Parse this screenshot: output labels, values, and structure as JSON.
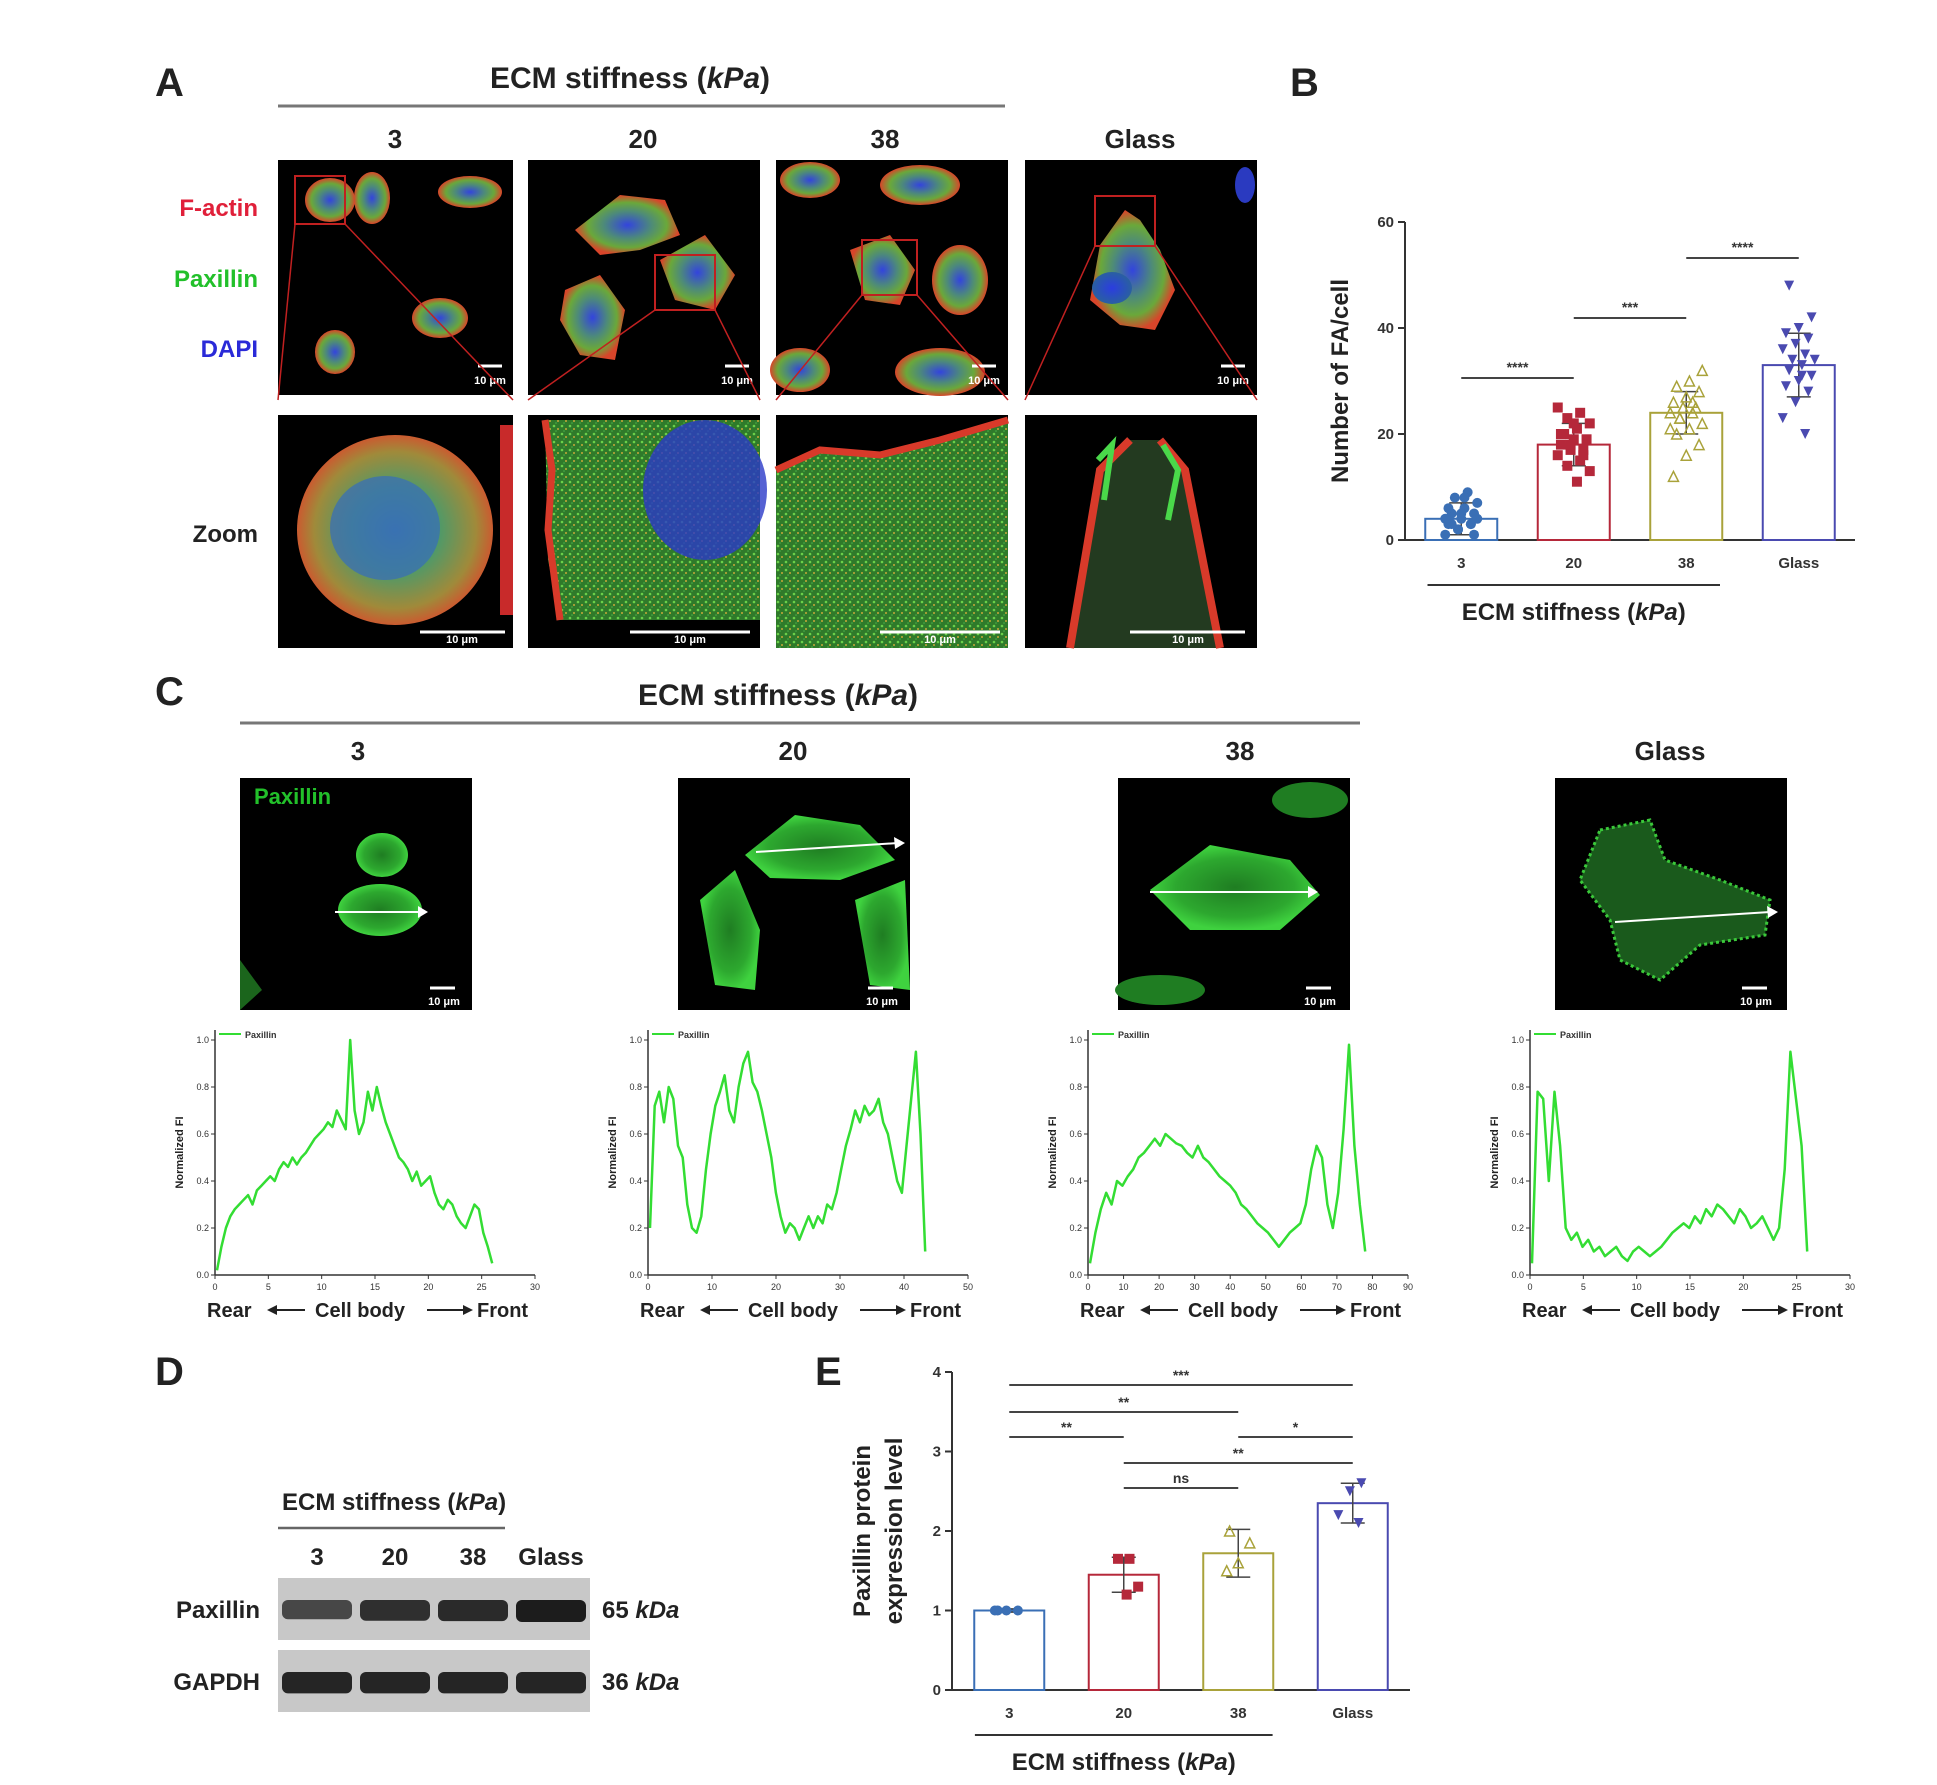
{
  "panels": {
    "A": {
      "label": "A",
      "header_prefix": "ECM stiffness (",
      "header_unit": "kPa",
      "header_suffix": ")",
      "columns": [
        "3",
        "20",
        "38",
        "Glass"
      ],
      "stains": [
        {
          "name": "F-actin",
          "color": "#e0203a"
        },
        {
          "name": "Paxillin",
          "color": "#22c02a"
        },
        {
          "name": "DAPI",
          "color": "#2a2ad8"
        }
      ],
      "zoom_label": "Zoom",
      "scale_bar": "10 μm"
    },
    "B": {
      "label": "B",
      "significance": [
        "****",
        "***",
        "****"
      ]
    },
    "C": {
      "label": "C",
      "header_prefix": "ECM stiffness (",
      "header_unit": "kPa",
      "header_suffix": ")",
      "columns": [
        "3",
        "20",
        "38",
        "Glass"
      ],
      "image_label": "Paxillin",
      "scale_bar": "10 μm",
      "direction": {
        "rear": "Rear",
        "body": "Cell body",
        "front": "Front"
      }
    },
    "D": {
      "label": "D",
      "header_prefix": "ECM stiffness (",
      "header_unit": "kPa",
      "header_suffix": ")",
      "lanes": [
        "3",
        "20",
        "38",
        "Glass"
      ],
      "bands": [
        {
          "name": "Paxillin",
          "size": "65 ",
          "unit": "kDa",
          "intensity": [
            0.55,
            0.8,
            0.85,
            1.0
          ]
        },
        {
          "name": "GAPDH",
          "size": "36 ",
          "unit": "kDa",
          "intensity": [
            0.9,
            0.9,
            0.9,
            0.9
          ]
        }
      ]
    },
    "E": {
      "label": "E",
      "significance": [
        {
          "from": 0,
          "to": 3,
          "text": "***"
        },
        {
          "from": 0,
          "to": 2,
          "text": "**"
        },
        {
          "from": 0,
          "to": 1,
          "text": "**"
        },
        {
          "from": 2,
          "to": 3,
          "text": "*"
        },
        {
          "from": 1,
          "to": 3,
          "text": "**"
        },
        {
          "from": 1,
          "to": 2,
          "text": "ns"
        }
      ]
    }
  },
  "chart_data": [
    {
      "id": "B",
      "type": "bar",
      "categories": [
        "3",
        "20",
        "38",
        "Glass"
      ],
      "values": [
        4,
        18,
        24,
        33
      ],
      "errors": [
        3,
        4,
        4,
        6
      ],
      "points": [
        [
          1,
          2,
          3,
          3,
          4,
          5,
          5,
          6,
          7,
          8,
          9,
          4,
          2,
          3,
          6,
          5,
          1,
          3,
          8,
          4
        ],
        [
          11,
          13,
          14,
          15,
          16,
          17,
          17,
          18,
          19,
          19,
          20,
          21,
          22,
          23,
          24,
          25,
          18,
          16,
          20,
          22
        ],
        [
          12,
          16,
          18,
          20,
          21,
          22,
          23,
          24,
          24,
          25,
          25,
          26,
          27,
          28,
          29,
          30,
          32,
          23,
          26,
          21
        ],
        [
          20,
          23,
          26,
          28,
          29,
          30,
          31,
          32,
          33,
          34,
          34,
          35,
          36,
          37,
          38,
          39,
          40,
          42,
          48,
          31
        ]
      ],
      "series_colors": [
        "#3a6fb5",
        "#b5283a",
        "#a9a23a",
        "#4a4ab0"
      ],
      "ylabel": "Number of FA/cell",
      "xlabel_prefix": "ECM stiffness (",
      "xlabel_unit": "kPa",
      "xlabel_suffix": ")",
      "ylim": [
        0,
        60
      ],
      "yticks": [
        "0",
        "20",
        "40",
        "60"
      ]
    },
    {
      "id": "C1",
      "type": "line",
      "series": [
        {
          "name": "Paxillin",
          "values": [
            0.02,
            0.12,
            0.2,
            0.25,
            0.28,
            0.3,
            0.32,
            0.34,
            0.3,
            0.36,
            0.38,
            0.4,
            0.42,
            0.4,
            0.45,
            0.48,
            0.46,
            0.5,
            0.47,
            0.5,
            0.52,
            0.55,
            0.58,
            0.6,
            0.62,
            0.65,
            0.63,
            0.7,
            0.66,
            0.62,
            1.0,
            0.7,
            0.6,
            0.65,
            0.78,
            0.7,
            0.8,
            0.72,
            0.65,
            0.6,
            0.55,
            0.5,
            0.48,
            0.45,
            0.4,
            0.44,
            0.38,
            0.4,
            0.42,
            0.35,
            0.3,
            0.28,
            0.32,
            0.3,
            0.25,
            0.22,
            0.2,
            0.25,
            0.3,
            0.28,
            0.18,
            0.12,
            0.05
          ]
        }
      ],
      "x_range": [
        0,
        31
      ],
      "ylim": [
        0,
        1.0
      ],
      "xticks": [
        "0",
        "5",
        "10",
        "15",
        "20",
        "25",
        "30"
      ],
      "yticks": [
        "0.0",
        "0.2",
        "0.4",
        "0.6",
        "0.8",
        "1.0"
      ],
      "ylabel": "Normalized FI"
    },
    {
      "id": "C2",
      "type": "line",
      "series": [
        {
          "name": "Paxillin",
          "values": [
            0.2,
            0.72,
            0.78,
            0.65,
            0.8,
            0.75,
            0.55,
            0.5,
            0.3,
            0.2,
            0.18,
            0.25,
            0.45,
            0.6,
            0.72,
            0.78,
            0.85,
            0.7,
            0.65,
            0.8,
            0.9,
            0.95,
            0.82,
            0.78,
            0.7,
            0.6,
            0.5,
            0.35,
            0.25,
            0.18,
            0.22,
            0.2,
            0.15,
            0.2,
            0.25,
            0.2,
            0.25,
            0.22,
            0.3,
            0.28,
            0.35,
            0.45,
            0.55,
            0.62,
            0.7,
            0.65,
            0.72,
            0.68,
            0.7,
            0.75,
            0.65,
            0.6,
            0.5,
            0.4,
            0.35,
            0.55,
            0.75,
            0.95,
            0.6,
            0.1
          ]
        }
      ],
      "x_range": [
        0,
        50
      ],
      "ylim": [
        0,
        1.0
      ],
      "xticks": [
        "0",
        "10",
        "20",
        "30",
        "40",
        "50"
      ],
      "yticks": [
        "0.0",
        "0.2",
        "0.4",
        "0.6",
        "0.8",
        "1.0"
      ],
      "ylabel": "Normalized FI"
    },
    {
      "id": "C3",
      "type": "line",
      "series": [
        {
          "name": "Paxillin",
          "values": [
            0.05,
            0.18,
            0.28,
            0.35,
            0.3,
            0.4,
            0.38,
            0.42,
            0.45,
            0.5,
            0.52,
            0.55,
            0.58,
            0.55,
            0.6,
            0.58,
            0.56,
            0.55,
            0.52,
            0.5,
            0.55,
            0.5,
            0.48,
            0.45,
            0.42,
            0.4,
            0.38,
            0.35,
            0.3,
            0.28,
            0.25,
            0.22,
            0.2,
            0.18,
            0.15,
            0.12,
            0.15,
            0.18,
            0.2,
            0.22,
            0.3,
            0.45,
            0.55,
            0.5,
            0.3,
            0.2,
            0.35,
            0.62,
            0.98,
            0.55,
            0.3,
            0.1
          ]
        }
      ],
      "x_range": [
        0,
        90
      ],
      "ylim": [
        0,
        1.0
      ],
      "xticks": [
        "0",
        "10",
        "20",
        "30",
        "40",
        "50",
        "60",
        "70",
        "80",
        "90"
      ],
      "yticks": [
        "0.0",
        "0.2",
        "0.4",
        "0.6",
        "0.8",
        "1.0"
      ],
      "ylabel": "Normalized FI"
    },
    {
      "id": "C4",
      "type": "line",
      "series": [
        {
          "name": "Paxillin",
          "values": [
            0.05,
            0.78,
            0.75,
            0.4,
            0.78,
            0.55,
            0.2,
            0.15,
            0.18,
            0.12,
            0.15,
            0.1,
            0.12,
            0.08,
            0.1,
            0.12,
            0.08,
            0.06,
            0.1,
            0.12,
            0.1,
            0.08,
            0.1,
            0.12,
            0.15,
            0.18,
            0.2,
            0.22,
            0.2,
            0.25,
            0.22,
            0.28,
            0.25,
            0.3,
            0.28,
            0.25,
            0.22,
            0.28,
            0.25,
            0.2,
            0.22,
            0.25,
            0.2,
            0.15,
            0.2,
            0.45,
            0.95,
            0.75,
            0.55,
            0.1
          ]
        }
      ],
      "x_range": [
        0,
        30
      ],
      "ylim": [
        0,
        1.0
      ],
      "xticks": [
        "0",
        "5",
        "10",
        "15",
        "20",
        "25",
        "30"
      ],
      "yticks": [
        "0.0",
        "0.2",
        "0.4",
        "0.6",
        "0.8",
        "1.0"
      ],
      "ylabel": "Normalized FI"
    },
    {
      "id": "E",
      "type": "bar",
      "categories": [
        "3",
        "20",
        "38",
        "Glass"
      ],
      "values": [
        1.0,
        1.45,
        1.72,
        2.35
      ],
      "errors": [
        0.02,
        0.22,
        0.3,
        0.25
      ],
      "points": [
        [
          1.0,
          1.0,
          1.0,
          1.0
        ],
        [
          1.2,
          1.3,
          1.65,
          1.65
        ],
        [
          1.5,
          1.6,
          1.85,
          2.0
        ],
        [
          2.1,
          2.2,
          2.5,
          2.6
        ]
      ],
      "series_colors": [
        "#3a6fb5",
        "#b5283a",
        "#a9a23a",
        "#4a4ab0"
      ],
      "ylabel_line1": "Paxillin  protein",
      "ylabel_line2": "expression level",
      "xlabel_prefix": "ECM stiffness (",
      "xlabel_unit": "kPa",
      "xlabel_suffix": ")",
      "ylim": [
        0,
        4
      ],
      "yticks": [
        "0",
        "1",
        "2",
        "3",
        "4"
      ]
    }
  ]
}
